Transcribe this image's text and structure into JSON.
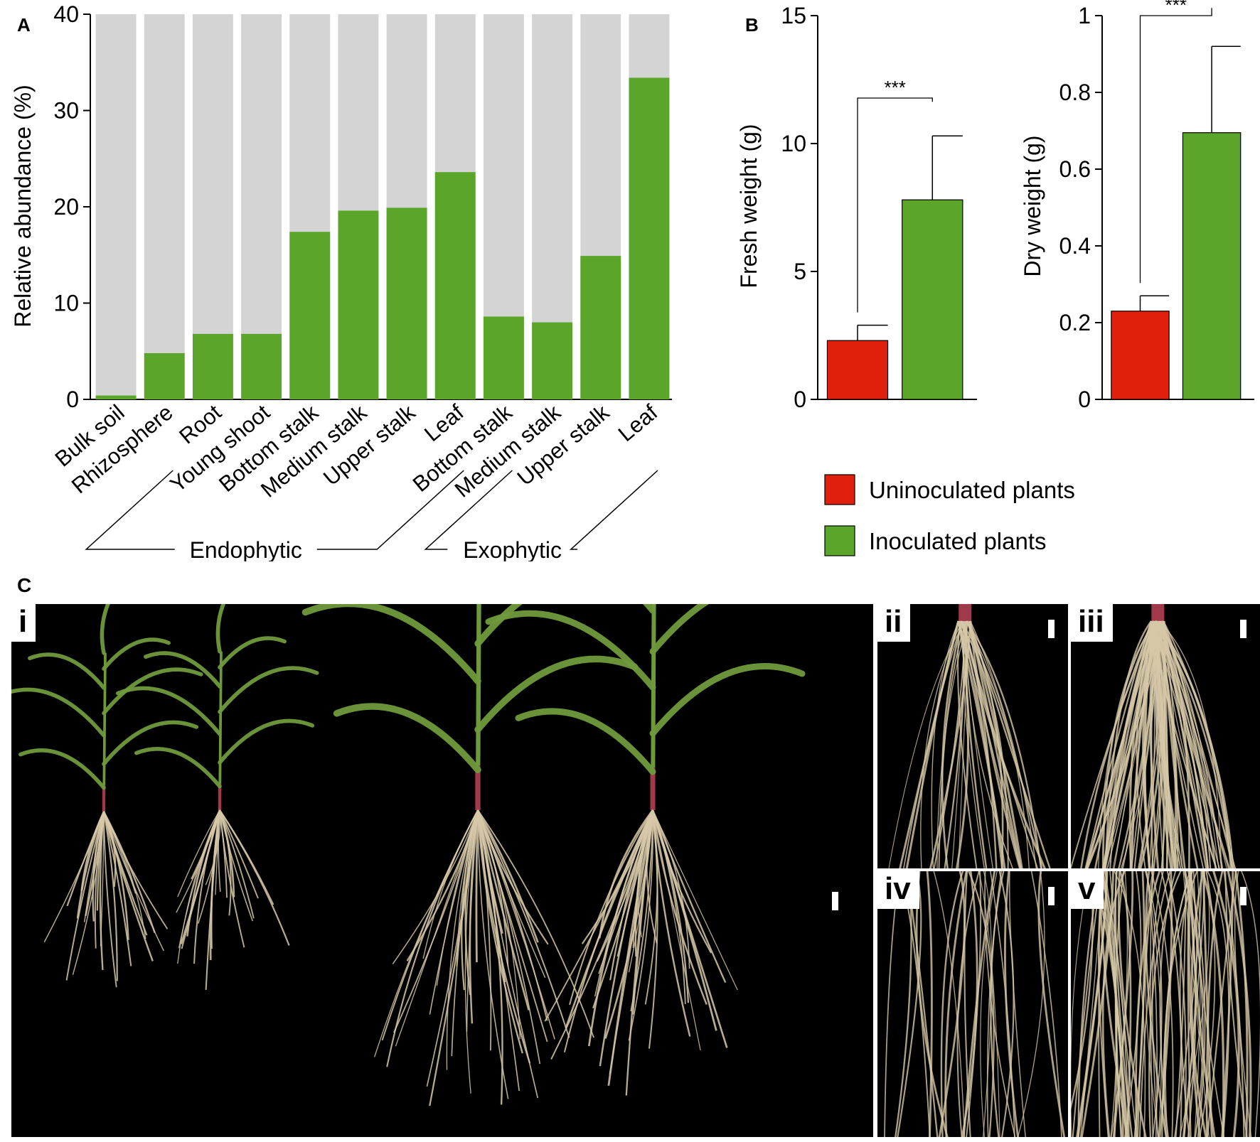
{
  "panel_labels": {
    "a": "A",
    "b": "B",
    "c": "C"
  },
  "chart_data": [
    {
      "type": "bar",
      "stacked_to_full": true,
      "categories": [
        "Bulk soil",
        "Rhizosphere",
        "Root",
        "Young shoot",
        "Bottom stalk",
        "Medium stalk",
        "Upper stalk",
        "Leaf",
        "Bottom stalk",
        "Medium stalk",
        "Upper stalk",
        "Leaf"
      ],
      "values": [
        0.4,
        4.8,
        6.8,
        6.8,
        17.4,
        19.6,
        19.9,
        23.6,
        8.6,
        8.0,
        14.9,
        33.4
      ],
      "ylabel": "Relative abundance (%)",
      "xlabel": "",
      "ylim": [
        0,
        40
      ],
      "yticks": [
        0,
        10,
        20,
        30,
        40
      ],
      "grid": false,
      "groups": [
        {
          "label": "Endophytic",
          "from": 1,
          "to": 7
        },
        {
          "label": "Exophytic",
          "from": 8,
          "to": 11
        }
      ],
      "colors": {
        "bar": "#5aa52a",
        "background": "#d4d4d4"
      }
    },
    {
      "type": "bar",
      "categories": [
        "Uninoculated plants",
        "Inoculated plants"
      ],
      "values": [
        2.3,
        7.8
      ],
      "errors": [
        0.6,
        2.5
      ],
      "ylabel": "Fresh weight (g)",
      "xlabel": "",
      "ylim": [
        0,
        15
      ],
      "yticks": [
        0,
        5,
        10,
        15
      ],
      "significance": "***",
      "colors": [
        "#e0200c",
        "#5aa52a"
      ]
    },
    {
      "type": "bar",
      "categories": [
        "Uninoculated plants",
        "Inoculated plants"
      ],
      "values": [
        0.23,
        0.695
      ],
      "errors": [
        0.04,
        0.225
      ],
      "ylabel": "Dry weight (g)",
      "xlabel": "",
      "ylim": [
        0,
        1
      ],
      "yticks": [
        0,
        0.2,
        0.4,
        0.6,
        0.8,
        1
      ],
      "significance": "***",
      "colors": [
        "#e0200c",
        "#5aa52a"
      ]
    }
  ],
  "legend": {
    "items": [
      {
        "label": "Uninoculated plants",
        "color": "#e0200c"
      },
      {
        "label": "Inoculated plants",
        "color": "#5aa52a"
      }
    ]
  },
  "photos": {
    "i": "i",
    "ii": "ii",
    "iii": "iii",
    "iv": "iv",
    "v": "v",
    "colors": {
      "leaf": "#6f9a3c",
      "root": "#d6c8a8",
      "stem": "#a03a4a"
    }
  }
}
